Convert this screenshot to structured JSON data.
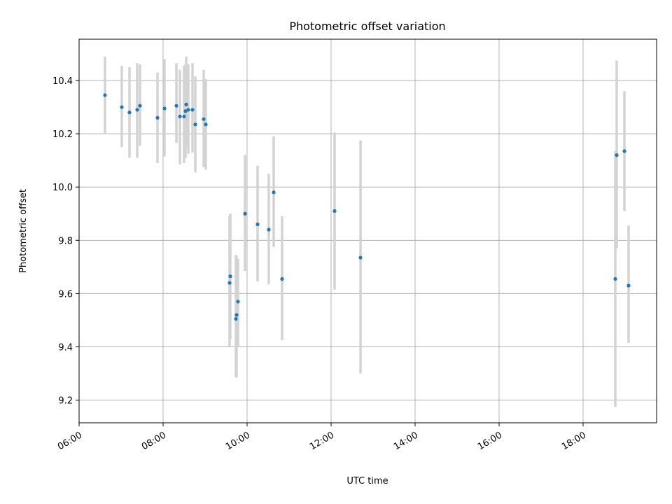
{
  "chart_data": {
    "type": "scatter",
    "title": "Photometric offset variation",
    "xlabel": "UTC time",
    "ylabel": "Photometric offset",
    "xlim": [
      "06:00",
      "19:45"
    ],
    "ylim": [
      9.115,
      10.555
    ],
    "x_ticks": [
      "06:00",
      "08:00",
      "10:00",
      "12:00",
      "14:00",
      "16:00",
      "18:00"
    ],
    "y_ticks": [
      "9.2",
      "9.4",
      "9.6",
      "9.8",
      "10.0",
      "10.2",
      "10.4"
    ],
    "grid": true,
    "colors": {
      "point": "#1f77b4",
      "errorbar": "#d3d3d3"
    },
    "series": [
      {
        "points": [
          {
            "x": "06:37",
            "y": 10.345,
            "ylow": 10.2,
            "yhigh": 10.49
          },
          {
            "x": "07:01",
            "y": 10.3,
            "ylow": 10.15,
            "yhigh": 10.455
          },
          {
            "x": "07:12",
            "y": 10.28,
            "ylow": 10.11,
            "yhigh": 10.45
          },
          {
            "x": "07:23",
            "y": 10.29,
            "ylow": 10.11,
            "yhigh": 10.465
          },
          {
            "x": "07:27",
            "y": 10.305,
            "ylow": 10.155,
            "yhigh": 10.46
          },
          {
            "x": "07:52",
            "y": 10.26,
            "ylow": 10.09,
            "yhigh": 10.43
          },
          {
            "x": "08:02",
            "y": 10.295,
            "ylow": 10.115,
            "yhigh": 10.48
          },
          {
            "x": "08:19",
            "y": 10.305,
            "ylow": 10.165,
            "yhigh": 10.465
          },
          {
            "x": "08:24",
            "y": 10.265,
            "ylow": 10.085,
            "yhigh": 10.44
          },
          {
            "x": "08:30",
            "y": 10.265,
            "ylow": 10.09,
            "yhigh": 10.455
          },
          {
            "x": "08:32",
            "y": 10.285,
            "ylow": 10.11,
            "yhigh": 10.46
          },
          {
            "x": "08:33",
            "y": 10.31,
            "ylow": 10.15,
            "yhigh": 10.49
          },
          {
            "x": "08:36",
            "y": 10.29,
            "ylow": 10.125,
            "yhigh": 10.46
          },
          {
            "x": "08:42",
            "y": 10.29,
            "ylow": 10.13,
            "yhigh": 10.465
          },
          {
            "x": "08:46",
            "y": 10.235,
            "ylow": 10.055,
            "yhigh": 10.415
          },
          {
            "x": "08:58",
            "y": 10.255,
            "ylow": 10.075,
            "yhigh": 10.44
          },
          {
            "x": "09:01",
            "y": 10.235,
            "ylow": 10.065,
            "yhigh": 10.405
          },
          {
            "x": "09:35",
            "y": 9.64,
            "ylow": 9.4,
            "yhigh": 9.89
          },
          {
            "x": "09:36",
            "y": 9.665,
            "ylow": 9.43,
            "yhigh": 9.9
          },
          {
            "x": "09:44",
            "y": 9.505,
            "ylow": 9.285,
            "yhigh": 9.745
          },
          {
            "x": "09:45",
            "y": 9.52,
            "ylow": 9.285,
            "yhigh": 9.74
          },
          {
            "x": "09:47",
            "y": 9.57,
            "ylow": 9.4,
            "yhigh": 9.73
          },
          {
            "x": "09:57",
            "y": 9.9,
            "ylow": 9.685,
            "yhigh": 10.12
          },
          {
            "x": "10:15",
            "y": 9.86,
            "ylow": 9.645,
            "yhigh": 10.08
          },
          {
            "x": "10:31",
            "y": 9.84,
            "ylow": 9.635,
            "yhigh": 10.05
          },
          {
            "x": "10:38",
            "y": 9.98,
            "ylow": 9.775,
            "yhigh": 10.19
          },
          {
            "x": "10:50",
            "y": 9.655,
            "ylow": 9.425,
            "yhigh": 9.89
          },
          {
            "x": "12:05",
            "y": 9.91,
            "ylow": 9.615,
            "yhigh": 10.205
          },
          {
            "x": "12:42",
            "y": 9.735,
            "ylow": 9.3,
            "yhigh": 10.175
          },
          {
            "x": "18:46",
            "y": 9.655,
            "ylow": 9.175,
            "yhigh": 10.135
          },
          {
            "x": "18:48",
            "y": 10.12,
            "ylow": 9.77,
            "yhigh": 10.475
          },
          {
            "x": "18:59",
            "y": 10.135,
            "ylow": 9.91,
            "yhigh": 10.36
          },
          {
            "x": "19:05",
            "y": 9.63,
            "ylow": 9.415,
            "yhigh": 9.855
          }
        ]
      }
    ]
  }
}
